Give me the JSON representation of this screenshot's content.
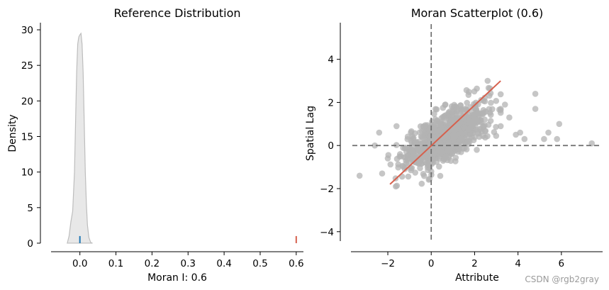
{
  "colors": {
    "kde_fill": "#e8e8e8",
    "kde_line": "#bdbdbd",
    "sim_marker": "#1f77b4",
    "observed_marker": "#d6604d",
    "scatter_points": "#b3b3b3",
    "regression_line": "#d6604d",
    "reference_lines": "#6e6e6e"
  },
  "chart_data": [
    {
      "type": "area",
      "title": "Reference Distribution",
      "xlabel": "Moran I: 0.6",
      "ylabel": "Density",
      "xlim": [
        -0.08,
        0.62
      ],
      "ylim": [
        -1.2,
        31
      ],
      "x_ticks": [
        "0.0",
        "0.1",
        "0.2",
        "0.3",
        "0.4",
        "0.5",
        "0.6"
      ],
      "y_ticks": [
        "0",
        "5",
        "10",
        "15",
        "20",
        "25",
        "30"
      ],
      "grid": false,
      "series": [
        {
          "x": [
            -0.035,
            -0.03,
            -0.025,
            -0.02,
            -0.015,
            -0.012,
            -0.009,
            -0.006,
            -0.003,
            0.0,
            0.003,
            0.006,
            0.009,
            0.012,
            0.015,
            0.018,
            0.021,
            0.025,
            0.03,
            0.035
          ],
          "values": [
            0.0,
            1.0,
            3.0,
            4.5,
            10.0,
            17.0,
            24.0,
            28.0,
            29.0,
            29.3,
            29.5,
            28.0,
            24.0,
            17.0,
            10.0,
            5.5,
            2.5,
            0.8,
            0.1,
            0.0
          ]
        }
      ],
      "markers": [
        {
          "x": 0.0,
          "height": 1.0
        },
        {
          "x": 0.6,
          "height": 1.0
        }
      ]
    },
    {
      "type": "scatter",
      "title": "Moran Scatterplot (0.6)",
      "xlabel": "Attribute",
      "ylabel": "Spatial Lag",
      "xlim": [
        -3.7,
        7.9
      ],
      "ylim": [
        -4.6,
        5.7
      ],
      "x_ticks": [
        "−2",
        "0",
        "2",
        "4",
        "6"
      ],
      "y_ticks": [
        "−4",
        "−2",
        "0",
        "2",
        "4"
      ],
      "grid": false,
      "reference_lines": {
        "x": 0,
        "y": 0
      },
      "regression_line": {
        "x": [
          -1.9,
          3.2
        ],
        "y": [
          -1.8,
          3.0
        ]
      },
      "points": {
        "count": 900,
        "outliers": [
          [
            -3.3,
            -1.4
          ],
          [
            -2.6,
            0.0
          ],
          [
            -2.4,
            0.6
          ],
          [
            -2.0,
            -0.6
          ],
          [
            2.6,
            3.0
          ],
          [
            3.4,
            1.9
          ],
          [
            3.6,
            1.3
          ],
          [
            3.9,
            0.5
          ],
          [
            4.1,
            0.6
          ],
          [
            4.8,
            2.4
          ],
          [
            4.8,
            1.7
          ],
          [
            5.2,
            0.3
          ],
          [
            5.4,
            0.6
          ],
          [
            5.8,
            0.3
          ],
          [
            5.9,
            1.0
          ],
          [
            7.4,
            0.1
          ],
          [
            4.3,
            0.3
          ],
          [
            3.2,
            0.9
          ],
          [
            2.1,
            -0.2
          ],
          [
            -1.6,
            0.9
          ]
        ]
      }
    }
  ],
  "watermark": "CSDN @rgb2gray"
}
